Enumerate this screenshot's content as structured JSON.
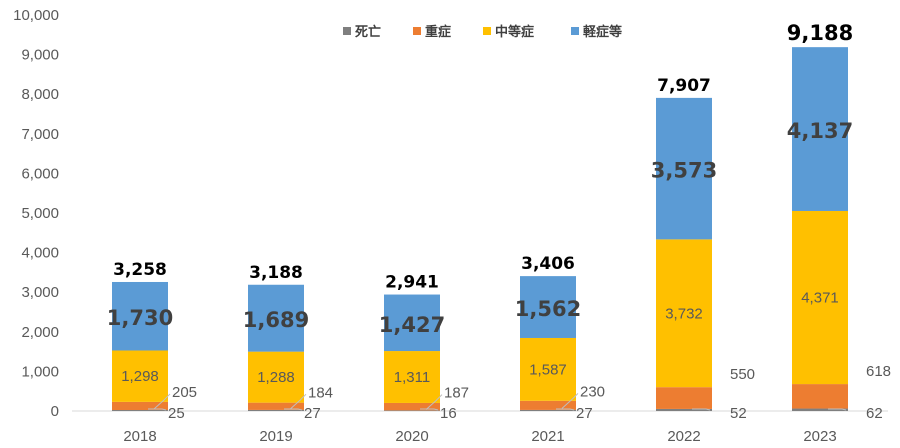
{
  "chart_data": {
    "type": "bar",
    "stacked": true,
    "categories": [
      "2018",
      "2019",
      "2020",
      "2021",
      "2022",
      "2023"
    ],
    "ylim": [
      0,
      10000
    ],
    "yticks": [
      "0",
      "1,000",
      "2,000",
      "3,000",
      "4,000",
      "5,000",
      "6,000",
      "7,000",
      "8,000",
      "9,000",
      "10,000"
    ],
    "grid": false,
    "legend_position": "top",
    "series": [
      {
        "name": "死亡",
        "color": "#7f7f7f",
        "values": [
          25,
          27,
          16,
          27,
          52,
          62
        ],
        "labels": [
          "25",
          "27",
          "16",
          "27",
          "52",
          "62"
        ]
      },
      {
        "name": "重症",
        "color": "#ed7d31",
        "values": [
          205,
          184,
          187,
          230,
          550,
          618
        ],
        "labels": [
          "205",
          "184",
          "187",
          "230",
          "550",
          "618"
        ]
      },
      {
        "name": "中等症",
        "color": "#ffc000",
        "values": [
          1298,
          1288,
          1311,
          1587,
          3732,
          4371
        ],
        "labels": [
          "1,298",
          "1,288",
          "1,311",
          "1,587",
          "3,732",
          "4,371"
        ]
      },
      {
        "name": "軽症等",
        "color": "#5b9bd5",
        "values": [
          1730,
          1689,
          1427,
          1562,
          3573,
          4137
        ],
        "labels": [
          "1,730",
          "1,689",
          "1,427",
          "1,562",
          "3,573",
          "4,137"
        ]
      }
    ],
    "totals": [
      3258,
      3188,
      2941,
      3406,
      7907,
      9188
    ],
    "total_labels": [
      "3,258",
      "3,188",
      "2,941",
      "3,406",
      "7,907",
      "9,188"
    ]
  }
}
